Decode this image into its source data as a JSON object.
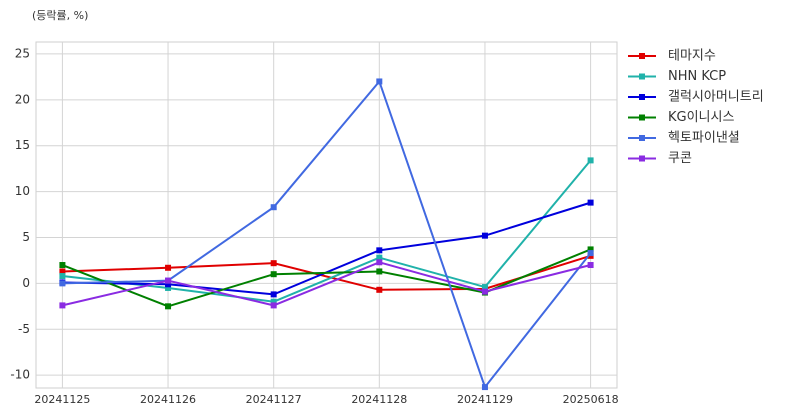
{
  "chart_data": {
    "type": "line",
    "title": "(등락률, %)",
    "categories": [
      "20241125",
      "20241126",
      "20241127",
      "20241128",
      "20241129",
      "20250618"
    ],
    "series": [
      {
        "name": "테마지수",
        "color": "#e00000",
        "values": [
          1.3,
          1.7,
          2.2,
          -0.7,
          -0.6,
          3.0
        ]
      },
      {
        "name": "NHN KCP",
        "color": "#20b2aa",
        "values": [
          0.8,
          -0.5,
          -2.0,
          2.8,
          -0.4,
          13.4
        ]
      },
      {
        "name": "갤럭시아머니트리",
        "color": "#0000dd",
        "values": [
          0.1,
          -0.1,
          -1.2,
          3.6,
          5.2,
          8.8
        ]
      },
      {
        "name": "KG이니시스",
        "color": "#008000",
        "values": [
          2.0,
          -2.5,
          1.0,
          1.3,
          -1.0,
          3.7
        ]
      },
      {
        "name": "헥토파이낸셜",
        "color": "#4169e1",
        "values": [
          0.0,
          0.3,
          8.3,
          22.0,
          -11.3,
          3.3
        ]
      },
      {
        "name": "쿠콘",
        "color": "#8a2be2",
        "values": [
          -2.4,
          0.3,
          -2.4,
          2.3,
          -0.9,
          2.0
        ]
      }
    ],
    "ylim": [
      -11.4,
      26.3
    ],
    "yticks": [
      -10,
      -5,
      0,
      5,
      10,
      15,
      20,
      25
    ],
    "grid": true,
    "legend": "right"
  }
}
